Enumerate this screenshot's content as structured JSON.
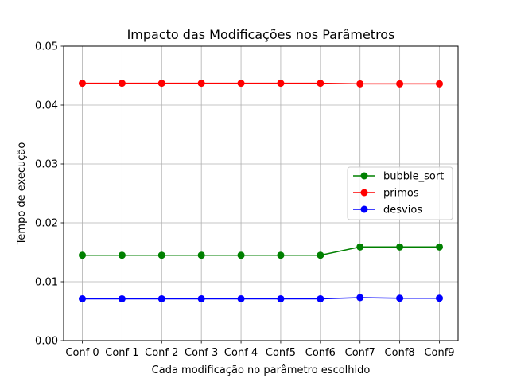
{
  "chart_data": {
    "type": "line",
    "title": "Impacto das Modificações nos Parâmetros",
    "xlabel": "Cada modificação no parâmetro escolhido",
    "ylabel": "Tempo de execução",
    "categories": [
      "Conf 0",
      "Conf 1",
      "Conf 2",
      "Conf 3",
      "Conf 4",
      "Conf5",
      "Conf6",
      "Conf7",
      "Conf8",
      "Conf9"
    ],
    "ylim": [
      0,
      0.05
    ],
    "yticks": [
      "0.00",
      "0.01",
      "0.02",
      "0.03",
      "0.04",
      "0.05"
    ],
    "grid": true,
    "legend_position": "center-right",
    "series": [
      {
        "name": "bubble_sort",
        "color": "#008000",
        "values": [
          0.0145,
          0.0145,
          0.0145,
          0.0145,
          0.0145,
          0.0145,
          0.0145,
          0.0159,
          0.0159,
          0.0159
        ]
      },
      {
        "name": "primos",
        "color": "#ff0000",
        "values": [
          0.0437,
          0.0437,
          0.0437,
          0.0437,
          0.0437,
          0.0437,
          0.0437,
          0.0436,
          0.0436,
          0.0436
        ]
      },
      {
        "name": "desvios",
        "color": "#0000ff",
        "values": [
          0.0071,
          0.0071,
          0.0071,
          0.0071,
          0.0071,
          0.0071,
          0.0071,
          0.0073,
          0.0072,
          0.0072
        ]
      }
    ]
  }
}
